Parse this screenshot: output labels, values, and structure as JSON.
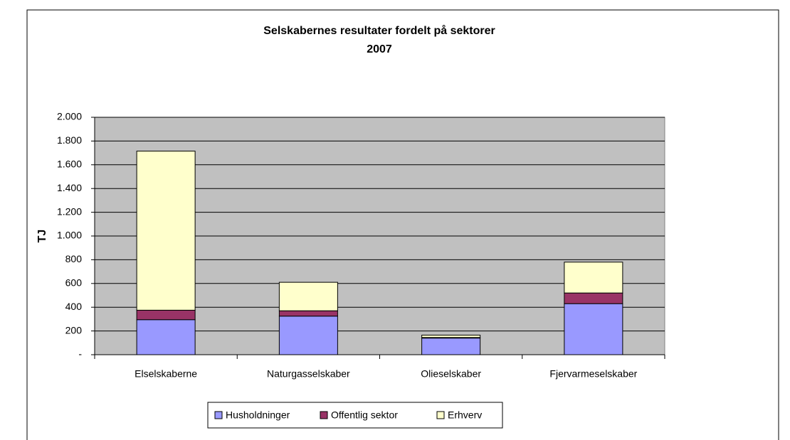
{
  "chart_data": {
    "type": "stacked_bar",
    "title": "Selskabernes resultater fordelt på sektorer",
    "subtitle": "2007",
    "y_label": "TJ",
    "categories": [
      "Elselskaberne",
      "Naturgasselskaber",
      "Olieselskaber",
      "Fjervarmeselskaber"
    ],
    "series": [
      {
        "name": "Husholdninger",
        "color": "#9999ff",
        "values": [
          295,
          325,
          140,
          430
        ]
      },
      {
        "name": "Offentlig sektor",
        "color": "#993366",
        "values": [
          80,
          45,
          5,
          90
        ]
      },
      {
        "name": "Erhverv",
        "color": "#ffffcc",
        "values": [
          1340,
          240,
          20,
          260
        ]
      }
    ],
    "ylim": [
      0,
      2000
    ],
    "yticks": [
      {
        "value": 0,
        "label": "-"
      },
      200,
      400,
      600,
      800,
      {
        "value": 1000,
        "label": "1.000"
      },
      {
        "value": 1200,
        "label": "1.200"
      },
      {
        "value": 1400,
        "label": "1.400"
      },
      {
        "value": 1600,
        "label": "1.600"
      },
      {
        "value": 1800,
        "label": "1.800"
      },
      {
        "value": 2000,
        "label": "2.000"
      }
    ],
    "grid": true,
    "legend": "bottom"
  }
}
